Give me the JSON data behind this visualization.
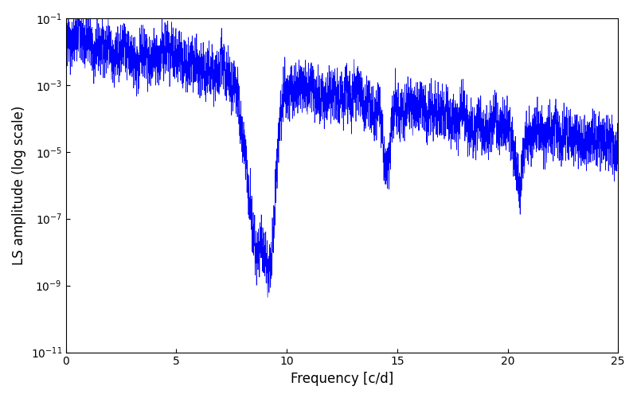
{
  "title": "",
  "xlabel": "Frequency [c/d]",
  "ylabel": "LS amplitude (log scale)",
  "line_color": "#0000ff",
  "background_color": "#ffffff",
  "xlim": [
    0,
    25
  ],
  "ylim_log": [
    -11,
    -1
  ],
  "figsize": [
    8.0,
    5.0
  ],
  "dpi": 100,
  "freq_max": 25.0,
  "n_points": 5000,
  "seed": 42
}
